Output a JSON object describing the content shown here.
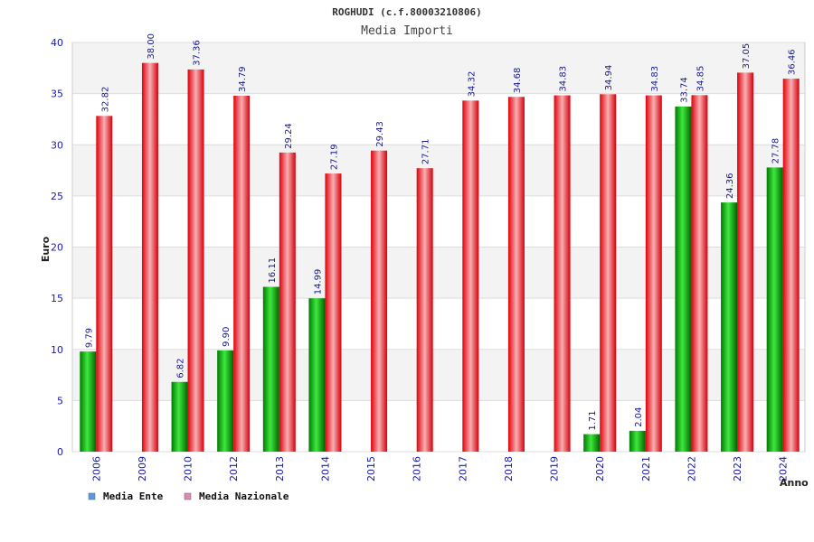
{
  "chart_data": {
    "type": "bar",
    "title": "ROGHUDI (c.f.80003210806)",
    "subtitle": "Media Importi",
    "xlabel": "Anno",
    "ylabel": "Euro",
    "ylim": [
      0,
      40
    ],
    "yticks": [
      0,
      5,
      10,
      15,
      20,
      25,
      30,
      35,
      40
    ],
    "grid": true,
    "legend_position": "bottom-left",
    "categories": [
      "2006",
      "2009",
      "2010",
      "2012",
      "2013",
      "2014",
      "2015",
      "2016",
      "2017",
      "2018",
      "2019",
      "2020",
      "2021",
      "2022",
      "2023",
      "2024"
    ],
    "series": [
      {
        "name": "Media Ente",
        "color": "#00a000",
        "legend_color": "#5b9bd5",
        "values": [
          9.79,
          null,
          6.82,
          9.9,
          16.11,
          14.99,
          null,
          null,
          null,
          null,
          null,
          1.71,
          2.04,
          33.74,
          24.36,
          27.78
        ],
        "labels": [
          "9.79",
          "",
          "6.82",
          "9.90",
          "16.11",
          "14.99",
          "",
          "",
          "",
          "",
          "",
          "1.71",
          "2.04",
          "33.74",
          "24.36",
          "27.78"
        ]
      },
      {
        "name": "Media Nazionale",
        "color": "#e8101c",
        "legend_color": "#d98cb3",
        "values": [
          32.82,
          38.0,
          37.36,
          34.79,
          29.24,
          27.19,
          29.43,
          27.71,
          34.32,
          34.68,
          34.83,
          34.94,
          34.83,
          34.85,
          37.05,
          36.46
        ],
        "labels": [
          "32.82",
          "38.00",
          "37.36",
          "34.79",
          "29.24",
          "27.19",
          "29.43",
          "27.71",
          "34.32",
          "34.68",
          "34.83",
          "34.94",
          "34.83",
          "34.85",
          "37.05",
          "36.46"
        ]
      }
    ]
  }
}
